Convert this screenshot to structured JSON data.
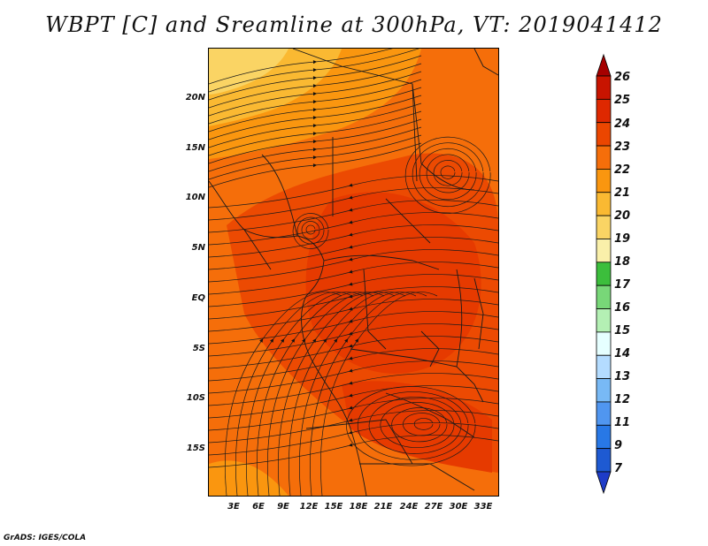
{
  "title": "WBPT [C] and Sreamline at 300hPa, VT: 2019041412",
  "credit": "GrADS: IGES/COLA",
  "map": {
    "latitude_labels": [
      "20N",
      "15N",
      "10N",
      "5N",
      "EQ",
      "5S",
      "10S",
      "15S"
    ],
    "longitude_labels": [
      "3E",
      "6E",
      "9E",
      "12E",
      "15E",
      "18E",
      "21E",
      "24E",
      "27E",
      "30E",
      "33E"
    ]
  },
  "colorbar": {
    "labels": [
      "26",
      "25",
      "24",
      "23",
      "22",
      "21",
      "20",
      "19",
      "18",
      "17",
      "16",
      "15",
      "14",
      "13",
      "12",
      "11",
      "9",
      "7"
    ],
    "colors": [
      "#a50000",
      "#c81400",
      "#de2800",
      "#eb4600",
      "#f56e0a",
      "#fa960f",
      "#fab932",
      "#fad464",
      "#faf0aa",
      "#3cbe3c",
      "#78d778",
      "#b4f0b4",
      "#e6ffff",
      "#b4dcff",
      "#78b9f5",
      "#5096f0",
      "#2878e6",
      "#1e5ad2",
      "#1e3cc8"
    ]
  }
}
